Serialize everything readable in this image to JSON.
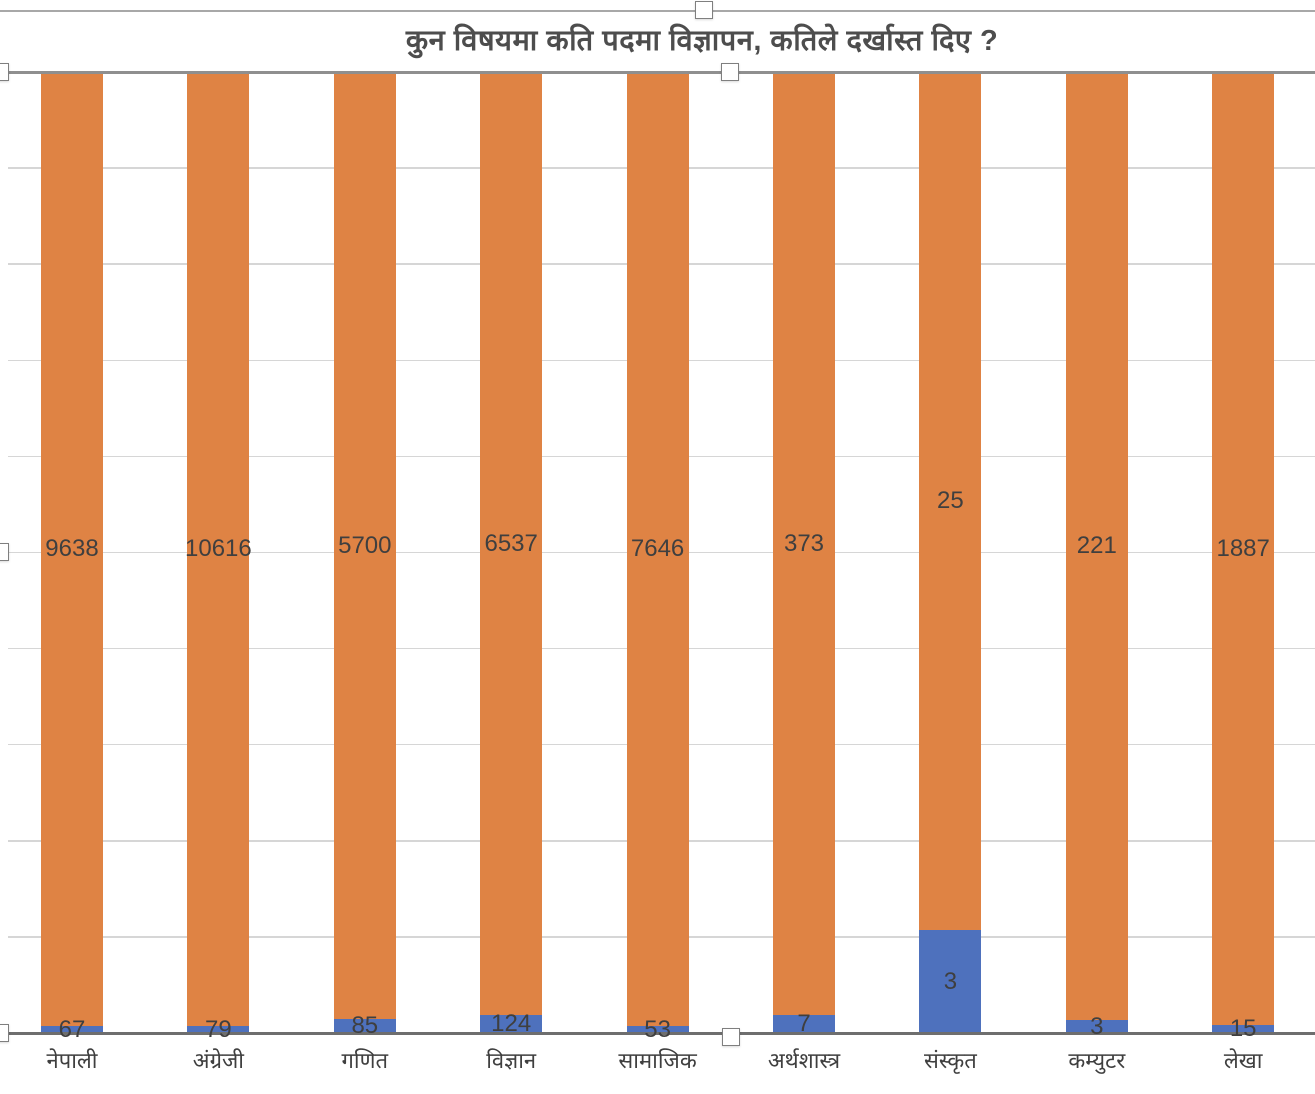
{
  "title": "कुन विषयमा कति पदमा विज्ञापन, कतिले दर्खास्त दिए ?",
  "chart_data": {
    "type": "bar",
    "variant": "100-percent-stacked-column",
    "title": "कुन विषयमा कति पदमा विज्ञापन, कतिले दर्खास्त दिए ?",
    "categories": [
      "नेपाली",
      "अंग्रेजी",
      "गणित",
      "विज्ञान",
      "सामाजिक",
      "अर्थशास्त्र",
      "संस्कृत",
      "कम्युटर",
      "लेखा"
    ],
    "series": [
      {
        "id": "blue-series",
        "color": "#4e71bd",
        "values": [
          67,
          79,
          85,
          124,
          53,
          7,
          3,
          3,
          15
        ]
      },
      {
        "id": "orange-series",
        "color": "#df8344",
        "values": [
          9638,
          10616,
          5700,
          6537,
          7646,
          373,
          25,
          221,
          1887
        ]
      }
    ],
    "data_labels": true,
    "xlabel": "",
    "ylabel": "",
    "ylim_percent": [
      0,
      100
    ],
    "gridline_interval_percent": 10,
    "gridlines_on": true,
    "legend": "none"
  },
  "colors": {
    "blue": "#4e71bd",
    "orange": "#df8344",
    "label_text": "#3f3f3f",
    "gridline": "#d6d6d6",
    "axis_line": "#6e6e6e"
  },
  "selection": {
    "state": "chart-selected",
    "visible_handles": [
      "chart-top-center",
      "plot-top-left",
      "plot-top-center",
      "plot-left-center",
      "plot-bottom-left",
      "plot-bottom-center"
    ]
  }
}
